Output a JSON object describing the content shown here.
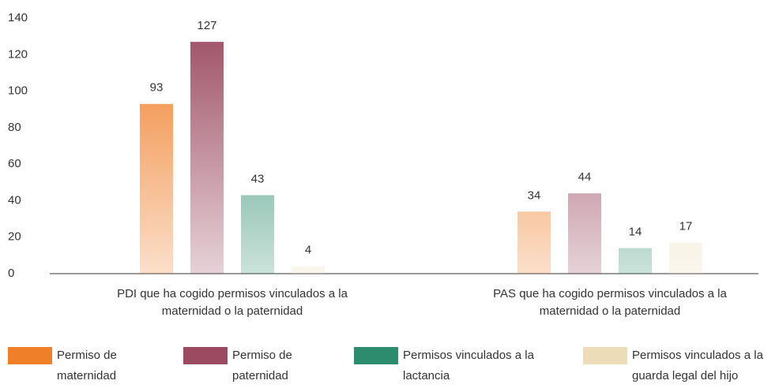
{
  "chart_data": {
    "type": "bar",
    "categories": [
      "PDI que ha cogido permisos vinculados a la maternidad o la paternidad",
      "PAS que ha cogido permisos vinculados a la maternidad o la paternidad"
    ],
    "series": [
      {
        "name": "Permiso de maternidad",
        "color": "#f07f2a",
        "values": [
          93,
          34
        ]
      },
      {
        "name": "Permiso de paternidad",
        "color": "#9b4a61",
        "values": [
          127,
          44
        ]
      },
      {
        "name": "Permisos vinculados a la lactancia",
        "color": "#2e8c6e",
        "values": [
          43,
          14
        ]
      },
      {
        "name": "Permisos vinculados a la guarda legal del hijo",
        "color": "#ecdcb8",
        "values": [
          4,
          17
        ]
      }
    ],
    "ylim": [
      0,
      140
    ],
    "yticks": [
      0,
      20,
      40,
      60,
      80,
      100,
      120,
      140
    ],
    "grid": false,
    "legend": "bottom"
  }
}
